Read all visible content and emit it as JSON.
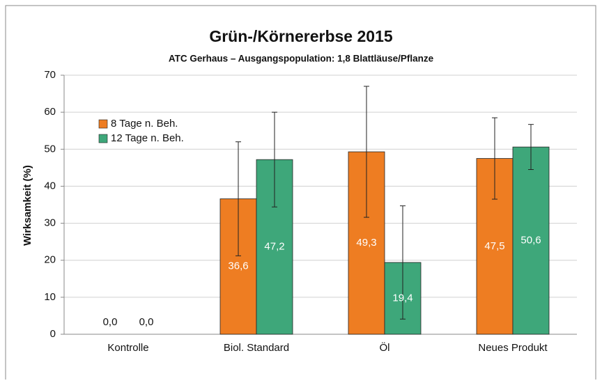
{
  "chart_data": {
    "type": "bar",
    "title": "Grün-/Körnererbse 2015",
    "subtitle": "ATC Gerhaus – Ausgangspopulation: 1,8 Blattläuse/Pflanze",
    "y_label": "Wirksamkeit (%)",
    "categories": [
      "Kontrolle",
      "Biol. Standard",
      "Öl",
      "Neues Produkt"
    ],
    "series": [
      {
        "name": "8 Tage n. Beh.",
        "color": "#ee7d22",
        "values": [
          0,
          36.6,
          49.3,
          47.5
        ],
        "value_labels": [
          "0,0",
          "36,6",
          "49,3",
          "47,5"
        ],
        "errors": [
          0,
          15.4,
          17.7,
          11
        ]
      },
      {
        "name": "12 Tage n. Beh.",
        "color": "#3ea77a",
        "values": [
          0,
          47.2,
          19.4,
          50.6
        ],
        "value_labels": [
          "0,0",
          "47,2",
          "19,4",
          "50,6"
        ],
        "errors": [
          0,
          12.8,
          15.3,
          6.1
        ]
      }
    ],
    "ylim": [
      0,
      70
    ],
    "yticks": [
      0,
      10,
      20,
      30,
      40,
      50,
      60,
      70
    ],
    "grid": true,
    "legend": "upper left"
  }
}
